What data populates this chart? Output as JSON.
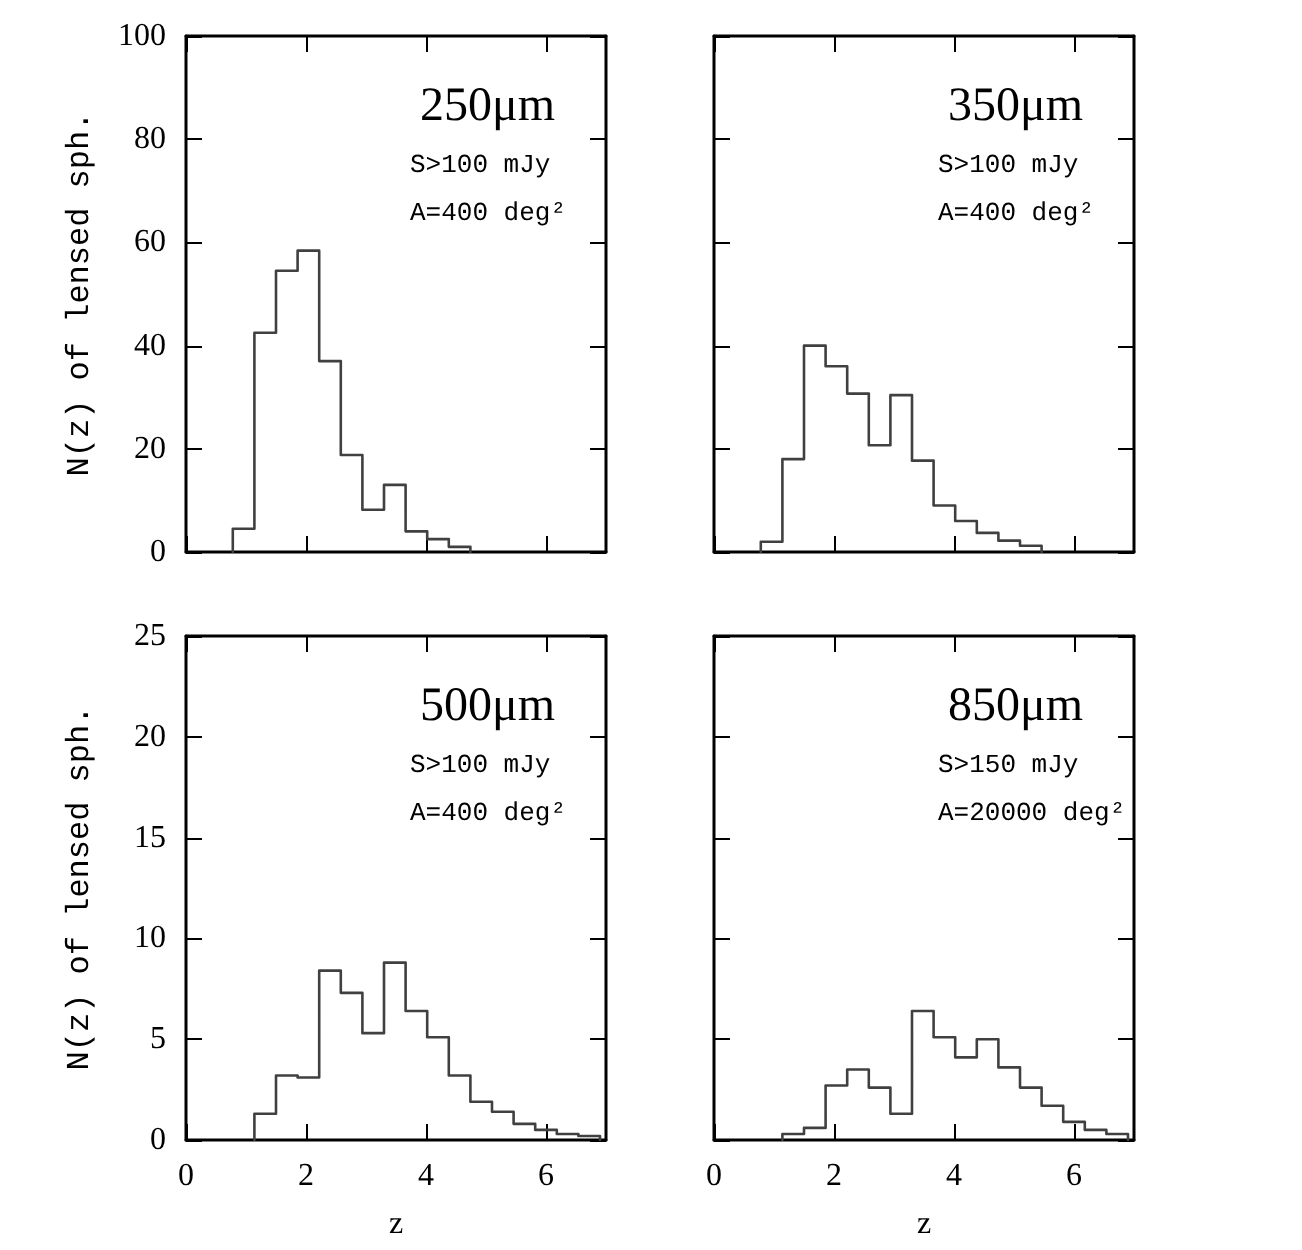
{
  "chart_data": [
    {
      "type": "histogram",
      "title": "250μm",
      "annotations": [
        "S>100 mJy",
        "A=400 deg²"
      ],
      "ylabel": "N(z) of lensed sph.",
      "bins": [
        0.78,
        1.14,
        1.5,
        1.86,
        2.22,
        2.58,
        2.94,
        3.3,
        3.66,
        4.02,
        4.38,
        4.74
      ],
      "values": [
        4.5,
        42.5,
        54.5,
        58.4,
        37,
        18.8,
        8.2,
        13,
        4,
        2.5,
        1
      ],
      "color": "#404040",
      "xlim": [
        0,
        7
      ],
      "xticks": [
        0,
        2,
        4,
        6
      ],
      "ylim": [
        0,
        100
      ],
      "yticks": [
        0,
        20,
        40,
        60,
        80,
        100
      ],
      "tick_labels": "y",
      "grid": false
    },
    {
      "type": "histogram",
      "title": "350μm",
      "annotations": [
        "S>100 mJy",
        "A=400 deg²"
      ],
      "bins": [
        0.78,
        1.14,
        1.5,
        1.86,
        2.22,
        2.58,
        2.94,
        3.3,
        3.66,
        4.02,
        4.38,
        4.74,
        5.1,
        5.46
      ],
      "values": [
        2,
        18,
        40,
        36,
        30.7,
        20.7,
        30.4,
        17.7,
        9,
        6,
        3.7,
        2.2,
        1.2
      ],
      "color": "#404040",
      "xlim": [
        0,
        7
      ],
      "xticks": [
        0,
        2,
        4,
        6
      ],
      "ylim": [
        0,
        100
      ],
      "yticks": [
        0,
        20,
        40,
        60,
        80,
        100
      ],
      "tick_labels": false,
      "grid": false
    },
    {
      "type": "histogram",
      "title": "500μm",
      "annotations": [
        "S>100 mJy",
        "A=400 deg²"
      ],
      "xlabel": "z",
      "ylabel": "N(z) of lensed sph.",
      "bins": [
        1.14,
        1.5,
        1.86,
        2.22,
        2.58,
        2.94,
        3.3,
        3.66,
        4.02,
        4.38,
        4.74,
        5.1,
        5.46,
        5.82,
        6.18,
        6.54,
        6.9
      ],
      "values": [
        1.3,
        3.2,
        3.1,
        8.4,
        7.3,
        5.3,
        8.8,
        6.4,
        5.1,
        3.2,
        1.9,
        1.4,
        0.8,
        0.5,
        0.3,
        0.2
      ],
      "color": "#404040",
      "xlim": [
        0,
        7
      ],
      "xticks": [
        0,
        2,
        4,
        6
      ],
      "ylim": [
        0,
        25
      ],
      "yticks": [
        0,
        5,
        10,
        15,
        20,
        25
      ],
      "grid": false
    },
    {
      "type": "histogram",
      "title": "850μm",
      "annotations": [
        "S>150 mJy",
        "A=20000 deg²"
      ],
      "xlabel": "z",
      "bins": [
        1.14,
        1.5,
        1.86,
        2.22,
        2.58,
        2.94,
        3.3,
        3.66,
        4.02,
        4.38,
        4.74,
        5.1,
        5.46,
        5.82,
        6.18,
        6.54,
        6.9
      ],
      "values": [
        0.3,
        0.6,
        2.7,
        3.5,
        2.6,
        1.3,
        6.4,
        5.1,
        4.1,
        5,
        3.6,
        2.6,
        1.7,
        0.9,
        0.5,
        0.3
      ],
      "color": "#404040",
      "xlim": [
        0,
        7
      ],
      "xticks": [
        0,
        2,
        4,
        6
      ],
      "ylim": [
        0,
        25
      ],
      "yticks": [
        0,
        5,
        10,
        15,
        20,
        25
      ],
      "tick_labels": "x",
      "grid": false
    }
  ]
}
